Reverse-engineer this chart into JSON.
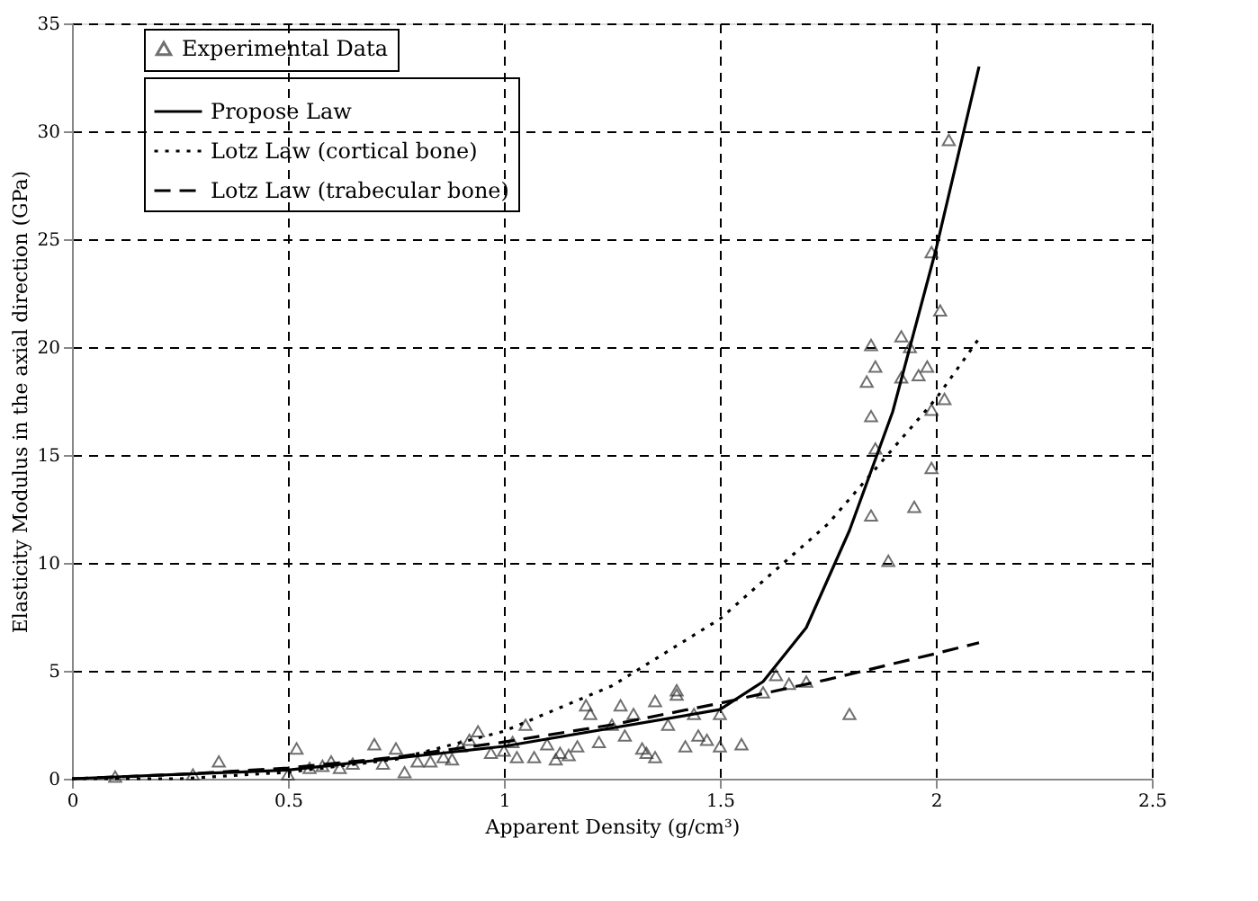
{
  "chart_data": {
    "type": "scatter",
    "xlabel": "Apparent Density (g/cm³)",
    "ylabel": "Elasticity Modulus in the axial direction (GPa)",
    "xlim": [
      0,
      2.5
    ],
    "xticks": [
      0,
      0.5,
      1,
      1.5,
      2,
      2.5
    ],
    "ylim": [
      0,
      35
    ],
    "yticks": [
      0,
      5,
      10,
      15,
      20,
      25,
      30,
      35
    ],
    "grid": true,
    "legend": "top left",
    "series": [
      {
        "name": "Experimental Data",
        "marker": "triangle",
        "color": "#333333",
        "x": [
          0.1,
          0.28,
          0.34,
          0.5,
          0.52,
          0.55,
          0.58,
          0.6,
          0.62,
          0.65,
          0.7,
          0.72,
          0.75,
          0.77,
          0.8,
          0.83,
          0.86,
          0.88,
          0.9,
          0.92,
          0.94,
          0.97,
          1.0,
          1.02,
          1.03,
          1.05,
          1.07,
          1.1,
          1.12,
          1.13,
          1.15,
          1.17,
          1.19,
          1.2,
          1.22,
          1.25,
          1.27,
          1.28,
          1.3,
          1.32,
          1.33,
          1.35,
          1.35,
          1.38,
          1.4,
          1.4,
          1.42,
          1.44,
          1.45,
          1.47,
          1.5,
          1.5,
          1.55,
          1.6,
          1.63,
          1.66,
          1.7,
          1.8,
          1.85,
          1.92,
          1.94,
          1.86,
          1.84,
          1.92,
          1.96,
          1.98,
          2.02,
          1.99,
          1.85,
          1.86,
          1.99,
          1.85,
          1.95,
          1.89,
          1.99,
          2.01,
          2.03
        ],
        "values": [
          0.1,
          0.2,
          0.8,
          0.2,
          1.4,
          0.5,
          0.6,
          0.8,
          0.5,
          0.7,
          1.6,
          0.7,
          1.4,
          0.3,
          0.8,
          0.8,
          1.0,
          0.9,
          1.5,
          1.8,
          2.2,
          1.2,
          1.3,
          1.7,
          1.0,
          2.5,
          1.0,
          1.6,
          0.9,
          1.2,
          1.1,
          1.5,
          3.4,
          3.0,
          1.7,
          2.5,
          3.4,
          2.0,
          3.0,
          1.4,
          1.2,
          1.0,
          3.6,
          2.5,
          3.9,
          4.1,
          1.5,
          3.0,
          2.0,
          1.8,
          3.0,
          1.5,
          1.6,
          4.0,
          4.8,
          4.4,
          4.5,
          3.0,
          20.1,
          20.5,
          20.0,
          19.1,
          18.4,
          18.6,
          18.7,
          19.1,
          17.6,
          17.1,
          16.8,
          15.3,
          14.4,
          12.2,
          12.6,
          10.1,
          24.4,
          21.7,
          29.6
        ]
      },
      {
        "name": "Propose Law",
        "type": "line",
        "line_style": "solid",
        "color": "#000000",
        "x": [
          0,
          0.5,
          1,
          1.5,
          1.6,
          1.7,
          1.8,
          1.9,
          2.0,
          2.1
        ],
        "values": [
          0,
          0.4,
          1.5,
          3.2,
          4.5,
          7,
          11.5,
          17,
          24.5,
          33
        ]
      },
      {
        "name": "Lotz Law (cortical bone)",
        "type": "line",
        "line_style": "dotted",
        "color": "#000000",
        "x": [
          0,
          0.25,
          0.5,
          0.75,
          1,
          1.25,
          1.5,
          1.75,
          2.0,
          2.1
        ],
        "values": [
          0,
          0.0,
          0.3,
          0.9,
          2.2,
          4.3,
          7.4,
          11.8,
          17.6,
          20.4
        ]
      },
      {
        "name": "Lotz Law (trabecular bone)",
        "type": "line",
        "line_style": "dashed",
        "color": "#000000",
        "x": [
          0,
          0.25,
          0.5,
          0.75,
          1,
          1.25,
          1.5,
          1.75,
          2.0,
          2.1
        ],
        "values": [
          0,
          0.2,
          0.5,
          1.0,
          1.7,
          2.5,
          3.5,
          4.6,
          5.8,
          6.3
        ]
      }
    ]
  }
}
